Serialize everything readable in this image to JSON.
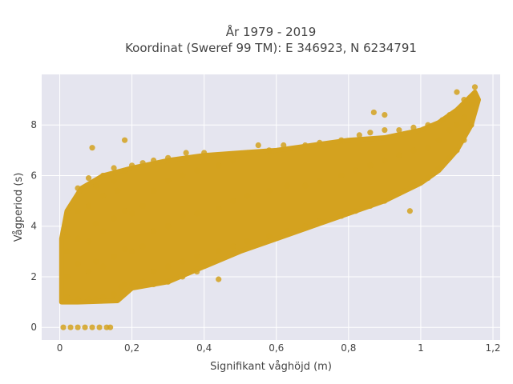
{
  "chart_data": {
    "type": "scatter",
    "title_line1": "År 1979 - 2019",
    "title_line2": "Koordinat (Sweref 99 TM): E 346923, N 6234791",
    "xlabel": "Signifikant våghöjd (m)",
    "ylabel": "Vågperiod (s)",
    "xlim": [
      -0.05,
      1.22
    ],
    "ylim": [
      -0.5,
      10.0
    ],
    "x_ticks": [
      0,
      0.2,
      0.4,
      0.6,
      0.8,
      1,
      1.2
    ],
    "x_tick_labels": [
      "0",
      "0,2",
      "0,4",
      "0,6",
      "0,8",
      "1",
      "1,2"
    ],
    "y_ticks": [
      0,
      2,
      4,
      6,
      8
    ],
    "y_tick_labels": [
      "0",
      "2",
      "4",
      "6",
      "8"
    ],
    "grid": true,
    "background_color": "#e5e5ef",
    "marker_color": "#d4a21f",
    "series": [
      {
        "points": [
          [
            0.01,
            0
          ],
          [
            0.03,
            0
          ],
          [
            0.05,
            0
          ],
          [
            0.07,
            0
          ],
          [
            0.09,
            0
          ],
          [
            0.11,
            0
          ],
          [
            0.13,
            0
          ],
          [
            0.14,
            0
          ],
          [
            0.02,
            1.2
          ],
          [
            0.02,
            2.0
          ],
          [
            0.02,
            3.0
          ],
          [
            0.02,
            3.6
          ],
          [
            0.02,
            4.4
          ],
          [
            0.05,
            1.1
          ],
          [
            0.05,
            2.5
          ],
          [
            0.05,
            3.5
          ],
          [
            0.05,
            4.6
          ],
          [
            0.05,
            5.5
          ],
          [
            0.08,
            1.1
          ],
          [
            0.08,
            2.2
          ],
          [
            0.08,
            3.4
          ],
          [
            0.08,
            4.8
          ],
          [
            0.08,
            5.9
          ],
          [
            0.1,
            1.1
          ],
          [
            0.1,
            2.6
          ],
          [
            0.1,
            4.1
          ],
          [
            0.1,
            5.6
          ],
          [
            0.09,
            7.1
          ],
          [
            0.12,
            1.2
          ],
          [
            0.12,
            2.4
          ],
          [
            0.12,
            3.8
          ],
          [
            0.12,
            5.2
          ],
          [
            0.12,
            6.0
          ],
          [
            0.15,
            1.3
          ],
          [
            0.15,
            2.8
          ],
          [
            0.15,
            4.3
          ],
          [
            0.15,
            5.8
          ],
          [
            0.15,
            6.3
          ],
          [
            0.17,
            1.6
          ],
          [
            0.16,
            5.4
          ],
          [
            0.18,
            1.7
          ],
          [
            0.18,
            3.1
          ],
          [
            0.18,
            4.6
          ],
          [
            0.18,
            6.2
          ],
          [
            0.2,
            1.7
          ],
          [
            0.2,
            3.0
          ],
          [
            0.2,
            4.5
          ],
          [
            0.2,
            6.4
          ],
          [
            0.18,
            7.4
          ],
          [
            0.23,
            1.8
          ],
          [
            0.23,
            3.2
          ],
          [
            0.23,
            4.8
          ],
          [
            0.23,
            6.5
          ],
          [
            0.26,
            1.7
          ],
          [
            0.26,
            2.2
          ],
          [
            0.26,
            3.8
          ],
          [
            0.26,
            5.4
          ],
          [
            0.26,
            6.6
          ],
          [
            0.3,
            1.8
          ],
          [
            0.3,
            2.4
          ],
          [
            0.3,
            4.0
          ],
          [
            0.3,
            5.8
          ],
          [
            0.3,
            6.7
          ],
          [
            0.34,
            2.0
          ],
          [
            0.34,
            2.6
          ],
          [
            0.34,
            4.4
          ],
          [
            0.34,
            6.0
          ],
          [
            0.35,
            6.9
          ],
          [
            0.38,
            2.2
          ],
          [
            0.38,
            2.8
          ],
          [
            0.38,
            4.5
          ],
          [
            0.38,
            6.2
          ],
          [
            0.4,
            6.9
          ],
          [
            0.44,
            1.9
          ],
          [
            0.44,
            3.0
          ],
          [
            0.44,
            4.7
          ],
          [
            0.44,
            6.4
          ],
          [
            0.44,
            6.8
          ],
          [
            0.48,
            3.2
          ],
          [
            0.48,
            5.0
          ],
          [
            0.48,
            6.6
          ],
          [
            0.52,
            3.4
          ],
          [
            0.52,
            5.2
          ],
          [
            0.52,
            6.9
          ],
          [
            0.55,
            7.2
          ],
          [
            0.58,
            3.6
          ],
          [
            0.58,
            5.4
          ],
          [
            0.58,
            7.0
          ],
          [
            0.63,
            3.8
          ],
          [
            0.63,
            5.6
          ],
          [
            0.62,
            7.2
          ],
          [
            0.68,
            4.0
          ],
          [
            0.68,
            5.6
          ],
          [
            0.68,
            7.2
          ],
          [
            0.72,
            4.2
          ],
          [
            0.72,
            5.8
          ],
          [
            0.72,
            7.3
          ],
          [
            0.78,
            4.4
          ],
          [
            0.78,
            6.0
          ],
          [
            0.78,
            7.4
          ],
          [
            0.82,
            4.6
          ],
          [
            0.82,
            6.2
          ],
          [
            0.83,
            7.6
          ],
          [
            0.86,
            4.8
          ],
          [
            0.86,
            6.4
          ],
          [
            0.86,
            7.7
          ],
          [
            0.87,
            8.5
          ],
          [
            0.9,
            5.0
          ],
          [
            0.9,
            6.6
          ],
          [
            0.9,
            7.8
          ],
          [
            0.9,
            8.4
          ],
          [
            0.94,
            5.3
          ],
          [
            0.94,
            6.8
          ],
          [
            0.94,
            7.8
          ],
          [
            0.97,
            4.6
          ],
          [
            0.98,
            5.6
          ],
          [
            0.98,
            7.0
          ],
          [
            0.98,
            7.9
          ],
          [
            1.02,
            5.9
          ],
          [
            1.02,
            7.1
          ],
          [
            1.02,
            8.0
          ],
          [
            1.05,
            6.3
          ],
          [
            1.05,
            7.4
          ],
          [
            1.06,
            8.2
          ],
          [
            1.08,
            6.7
          ],
          [
            1.08,
            7.8
          ],
          [
            1.08,
            8.4
          ],
          [
            1.1,
            7.0
          ],
          [
            1.1,
            8.0
          ],
          [
            1.1,
            9.3
          ],
          [
            1.12,
            7.4
          ],
          [
            1.12,
            8.3
          ],
          [
            1.12,
            9.0
          ],
          [
            1.14,
            8.0
          ],
          [
            1.14,
            8.8
          ],
          [
            1.15,
            9.5
          ]
        ]
      }
    ]
  }
}
